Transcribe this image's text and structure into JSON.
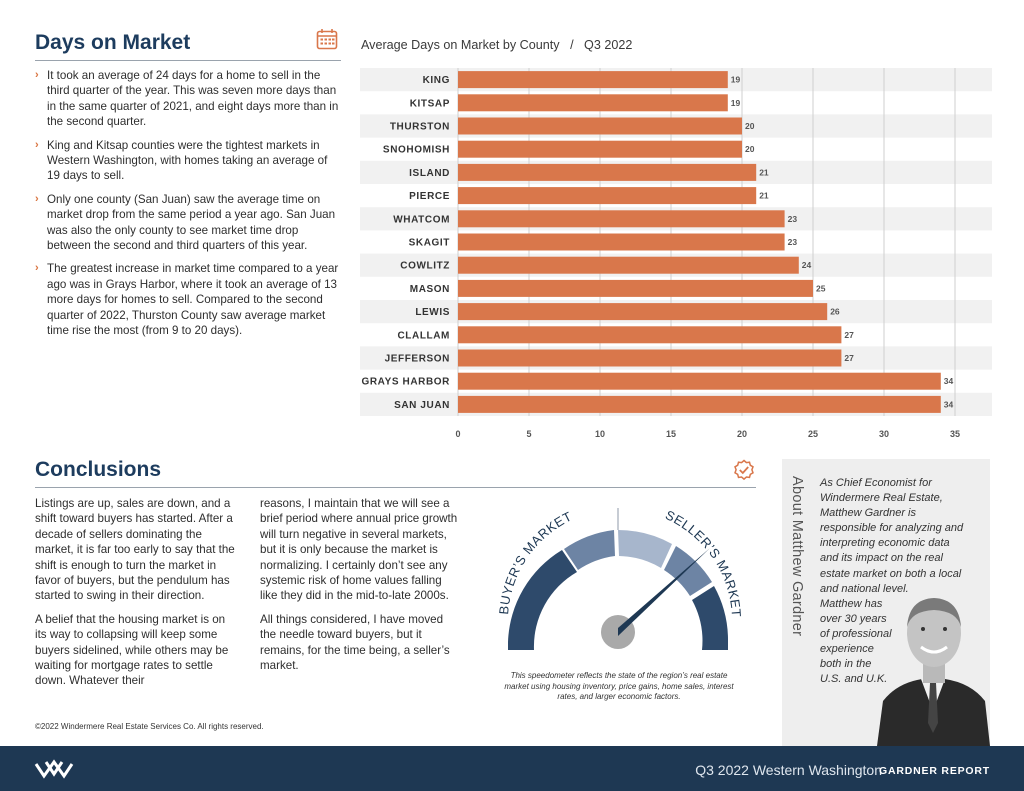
{
  "days_section": {
    "title": "Days on Market",
    "bullets": [
      "It took an average of 24 days for a home to sell in the third quarter of the year. This was seven more days than in the same quarter of 2021, and eight days more than in the second quarter.",
      "King and Kitsap counties were the tightest markets in Western Washington, with homes taking an average of 19 days to sell.",
      "Only one county (San Juan) saw the average time on market drop from the same period a year ago. San Juan was also the only county to see market time drop between the second and third quarters of this year.",
      "The greatest increase in market time compared to a year ago was in Grays Harbor, where it took an average of 13 more days for homes to sell. Compared to the second quarter of 2022, Thurston County saw average market time rise the most (from 9 to 20 days)."
    ]
  },
  "chart_data": {
    "type": "bar",
    "orientation": "horizontal",
    "title": "Average Days on Market by County   /   Q3 2022",
    "categories": [
      "KING",
      "KITSAP",
      "THURSTON",
      "SNOHOMISH",
      "ISLAND",
      "PIERCE",
      "WHATCOM",
      "SKAGIT",
      "COWLITZ",
      "MASON",
      "LEWIS",
      "CLALLAM",
      "JEFFERSON",
      "GRAYS HARBOR",
      "SAN JUAN"
    ],
    "values": [
      19,
      19,
      20,
      20,
      21,
      21,
      23,
      23,
      24,
      25,
      26,
      27,
      27,
      34,
      34
    ],
    "xticks": [
      "0",
      "5",
      "10",
      "15",
      "20",
      "25",
      "30",
      "35"
    ],
    "xlim": [
      0,
      35
    ],
    "grid": true,
    "bar_color": "#d9774b"
  },
  "conclusions": {
    "title": "Conclusions",
    "col1": [
      "Listings are up, sales are down, and a shift toward buyers has started. After a decade of sellers dominating the market, it is far too early to say that the shift is enough to turn the market in favor of buyers, but the pendulum has started to swing in their direction.",
      "A belief that the housing market is on its way to collapsing will keep some buyers sidelined, while others may be waiting for mortgage rates to settle down. Whatever their"
    ],
    "col2": [
      "reasons, I maintain that we will see a brief period where annual price growth will turn negative in several markets, but it is only because the market is normalizing. I certainly don’t see any systemic risk of home values falling like they did in the mid-to-late 2000s.",
      "All things considered, I have moved the needle toward buyers, but it remains, for the time being, a seller’s market."
    ]
  },
  "gauge": {
    "buyers_label": "BUYER’S MARKET",
    "sellers_label": "SELLER’S MARKET",
    "caption": "This speedometer reflects the state of the region’s real estate market using housing inventory, price gains, home sales, interest rates, and larger economic factors.",
    "needle_position": 0.7,
    "colors": [
      "#2e4a6b",
      "#6d84a4",
      "#a7b6cc",
      "#6d84a4",
      "#2e4a6b"
    ]
  },
  "about": {
    "title": "About Matthew Gardner",
    "text_lines": [
      "As Chief Economist for",
      "Windermere Real Estate,",
      "Matthew Gardner is",
      "responsible for analyzing and",
      "interpreting economic data",
      "and its impact on the real",
      "estate market on both a local",
      "and national level.",
      "Matthew has",
      "over 30 years",
      "of professional",
      "experience",
      "both in the",
      "U.S. and U.K."
    ]
  },
  "copyright": "©2022 Windermere Real Estate Services Co. All rights reserved.",
  "footer": {
    "title": "Q3 2022  Western Washington",
    "brand": "GARDNER REPORT"
  },
  "colors": {
    "navy": "#1e3853",
    "accent": "#d9774b",
    "heading": "#1d3c5e"
  }
}
